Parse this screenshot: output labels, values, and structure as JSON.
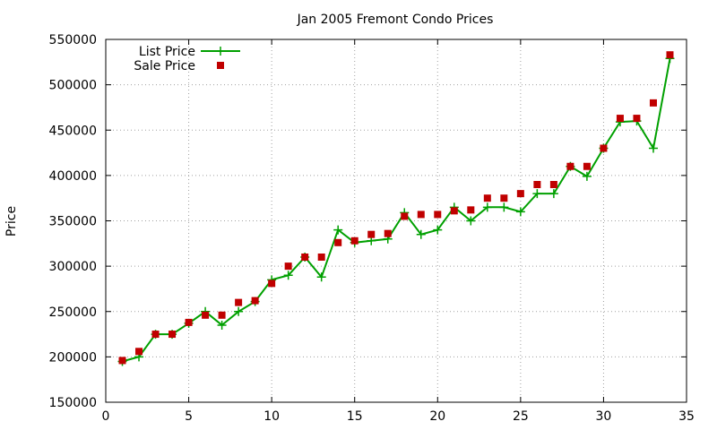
{
  "chart_data": {
    "type": "line",
    "title": "Jan 2005 Fremont Condo Prices",
    "xlabel": "",
    "ylabel": "Price",
    "xlim": [
      0,
      35
    ],
    "ylim": [
      150000,
      550000
    ],
    "xticks": [
      0,
      5,
      10,
      15,
      20,
      25,
      30,
      35
    ],
    "yticks": [
      150000,
      200000,
      250000,
      300000,
      350000,
      400000,
      450000,
      500000,
      550000
    ],
    "grid": true,
    "legend_position": "top-left",
    "x": [
      1,
      2,
      3,
      4,
      5,
      6,
      7,
      8,
      9,
      10,
      11,
      12,
      13,
      14,
      15,
      16,
      17,
      18,
      19,
      20,
      21,
      22,
      23,
      24,
      25,
      26,
      27,
      28,
      29,
      30,
      31,
      32,
      33,
      34
    ],
    "series": [
      {
        "name": "List Price",
        "style": "line-plus",
        "color": "#00a000",
        "values": [
          195000,
          200000,
          225000,
          225000,
          237000,
          250000,
          235000,
          250000,
          261000,
          285000,
          290000,
          310000,
          288000,
          340000,
          326000,
          328000,
          330000,
          359000,
          335000,
          340000,
          365000,
          350000,
          365000,
          365000,
          360000,
          380000,
          380000,
          410000,
          399000,
          430000,
          459000,
          460000,
          430000,
          529000
        ]
      },
      {
        "name": "Sale Price",
        "style": "square-points",
        "color": "#c00000",
        "values": [
          196000,
          206000,
          225000,
          225000,
          238000,
          246000,
          246000,
          260000,
          262000,
          281000,
          300000,
          310000,
          310000,
          326000,
          328000,
          335000,
          336000,
          355000,
          357000,
          357000,
          361000,
          362000,
          375000,
          375000,
          380000,
          390000,
          390000,
          410000,
          410000,
          430000,
          463000,
          463000,
          480000,
          533000
        ]
      }
    ]
  }
}
